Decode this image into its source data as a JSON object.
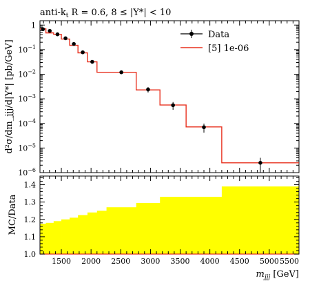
{
  "chart_data": [
    {
      "type": "line",
      "title_parts": {
        "prefix": "anti-k",
        "prefix_sub": "t",
        "rest": " R = 0.6, 8 ≤ |Y*| < 10"
      },
      "ylabel": "d²σ/dm_jjj/d|Y*| [pb/GeV]",
      "yscale": "log",
      "ylim": [
        1e-06,
        1.5
      ],
      "y_tick_labels": [
        {
          "value": 1,
          "base": "1",
          "exp": ""
        },
        {
          "value": 0.1,
          "base": "10",
          "exp": "−1"
        },
        {
          "value": 0.01,
          "base": "10",
          "exp": "−2"
        },
        {
          "value": 0.001,
          "base": "10",
          "exp": "−3"
        },
        {
          "value": 0.0001,
          "base": "10",
          "exp": "−4"
        },
        {
          "value": 1e-05,
          "base": "10",
          "exp": "−5"
        },
        {
          "value": 1e-06,
          "base": "10",
          "exp": "−6"
        }
      ],
      "xlim": [
        1140,
        5500
      ],
      "legend": {
        "position": "top-right",
        "data_label": "Data",
        "mc_label": "[5] 1e-06"
      },
      "bin_edges": [
        1140,
        1240,
        1370,
        1500,
        1640,
        1780,
        1940,
        2100,
        2260,
        2760,
        3160,
        3600,
        4200,
        5500
      ],
      "mc_values": [
        0.7,
        0.48,
        0.42,
        0.27,
        0.15,
        0.074,
        0.032,
        0.012,
        0.012,
        0.0023,
        0.00056,
        7.2e-05,
        2.5e-06
      ],
      "data_points": [
        {
          "x": 1190,
          "y": 0.68,
          "yerr_rel": 0.12
        },
        {
          "x": 1305,
          "y": 0.58,
          "yerr_rel": 0.12
        },
        {
          "x": 1435,
          "y": 0.42,
          "yerr_rel": 0.12
        },
        {
          "x": 1570,
          "y": 0.29,
          "yerr_rel": 0.12
        },
        {
          "x": 1710,
          "y": 0.17,
          "yerr_rel": 0.15
        },
        {
          "x": 1860,
          "y": 0.078,
          "yerr_rel": 0.15
        },
        {
          "x": 2020,
          "y": 0.032,
          "yerr_rel": 0.15
        },
        {
          "x": 2510,
          "y": 0.012,
          "yerr_rel": 0.15
        },
        {
          "x": 2960,
          "y": 0.0024,
          "yerr_rel": 0.25
        },
        {
          "x": 3380,
          "y": 0.00055,
          "yerr_rel": 0.35
        },
        {
          "x": 3900,
          "y": 7e-05,
          "yerr_rel": 0.4
        },
        {
          "x": 4850,
          "y": 2.5e-06,
          "yerr_rel": 0.6
        }
      ]
    },
    {
      "type": "area",
      "ylabel": "MC/Data",
      "xlabel_var": "m",
      "xlabel_sub": "jjj",
      "xlabel_unit": " [GeV]",
      "ylim": [
        1.0,
        1.45
      ],
      "y_ticks": [
        1.0,
        1.1,
        1.2,
        1.3,
        1.4
      ],
      "y_tick_labels": [
        "1.0",
        "1.1",
        "1.2",
        "1.3",
        "1.4"
      ],
      "x_ticks": [
        1500,
        2000,
        2500,
        3000,
        3500,
        4000,
        4500,
        5000,
        5500
      ],
      "x_tick_labels": [
        "1500",
        "2000",
        "2500",
        "3000",
        "3500",
        "4000",
        "4500",
        "5000",
        "5500"
      ],
      "bin_edges": [
        1140,
        1240,
        1370,
        1500,
        1640,
        1780,
        1940,
        2100,
        2260,
        2760,
        3160,
        3600,
        4200,
        5500
      ],
      "ratio_values": [
        1.175,
        1.18,
        1.19,
        1.2,
        1.21,
        1.225,
        1.24,
        1.25,
        1.27,
        1.295,
        1.33,
        1.33,
        1.39
      ],
      "fill_color": "#ffff00",
      "line_color": "#e8301e"
    }
  ]
}
